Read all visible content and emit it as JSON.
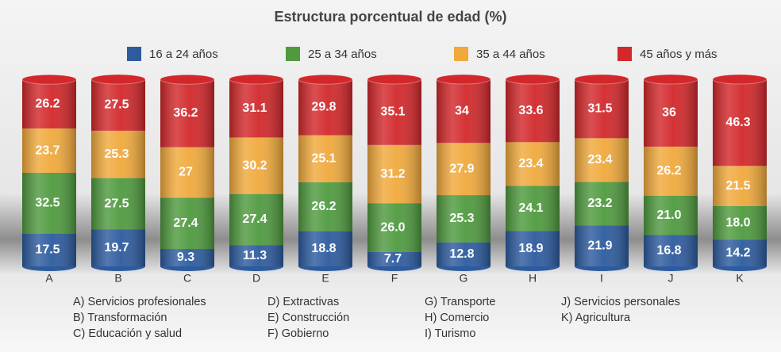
{
  "chart_data": {
    "type": "stacked_bar",
    "title": "Estructura porcentual de edad (%)",
    "categories": [
      "A",
      "B",
      "C",
      "D",
      "E",
      "F",
      "G",
      "H",
      "I",
      "J",
      "K"
    ],
    "ylim": [
      0,
      100
    ],
    "series": [
      {
        "name": "16 a 24 años",
        "color": "#2d5b9e",
        "values": [
          17.5,
          19.7,
          9.3,
          11.3,
          18.8,
          7.7,
          12.8,
          18.9,
          21.9,
          16.8,
          14.2
        ],
        "value_labels": [
          "17.5",
          "19.7",
          "9.3",
          "11.3",
          "18.8",
          "7.7",
          "12.8",
          "18.9",
          "21.9",
          "16.8",
          "14.2"
        ]
      },
      {
        "name": "25 a 34 años",
        "color": "#4f9a3f",
        "values": [
          32.5,
          27.5,
          27.4,
          27.4,
          26.2,
          26.0,
          25.3,
          24.1,
          23.2,
          21.0,
          18.0
        ],
        "value_labels": [
          "32.5",
          "27.5",
          "27.4",
          "27.4",
          "26.2",
          "26.0",
          "25.3",
          "24.1",
          "23.2",
          "21.0",
          "18.0"
        ]
      },
      {
        "name": "35 a 44 años",
        "color": "#f0a93c",
        "values": [
          23.7,
          25.3,
          27,
          30.2,
          25.1,
          31.2,
          27.9,
          23.4,
          23.4,
          26.2,
          21.5
        ],
        "value_labels": [
          "23.7",
          "25.3",
          "27",
          "30.2",
          "25.1",
          "31.2",
          "27.9",
          "23.4",
          "23.4",
          "26.2",
          "21.5"
        ]
      },
      {
        "name": "45 años y más",
        "color": "#d2282b",
        "values": [
          26.2,
          27.5,
          36.2,
          31.1,
          29.8,
          35.1,
          34,
          33.6,
          31.5,
          36,
          46.3
        ],
        "value_labels": [
          "26.2",
          "27.5",
          "36.2",
          "31.1",
          "29.8",
          "35.1",
          "34",
          "33.6",
          "31.5",
          "36",
          "46.3"
        ]
      }
    ],
    "category_notes": [
      "A) Servicios profesionales",
      "B) Transformación",
      "C) Educación y salud",
      "D) Extractivas",
      "E) Construcción",
      "F) Gobierno",
      "G) Transporte",
      "H) Comercio",
      "I)   Turismo",
      "J) Servicios personales",
      "K) Agricultura"
    ]
  }
}
